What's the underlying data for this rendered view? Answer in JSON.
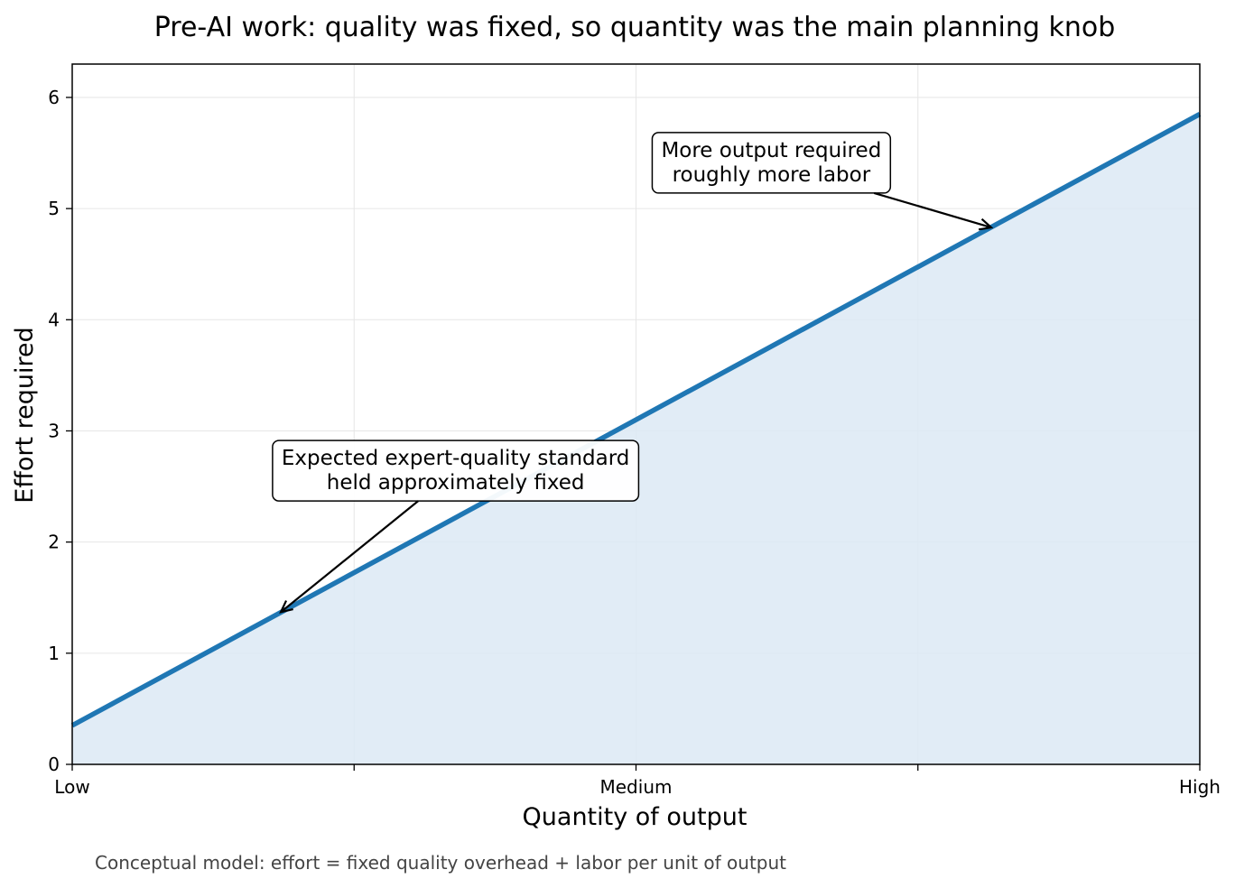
{
  "chart_data": {
    "type": "area",
    "title": "Pre-AI work: quality was fixed, so quantity was the main planning knob",
    "xlabel": "Quantity of output",
    "ylabel": "Effort required",
    "x_ticks": [
      {
        "value": 0,
        "label": "Low"
      },
      {
        "value": 0.25,
        "label": ""
      },
      {
        "value": 0.5,
        "label": "Medium"
      },
      {
        "value": 0.75,
        "label": ""
      },
      {
        "value": 1,
        "label": "High"
      }
    ],
    "y_ticks": [
      0,
      1,
      2,
      3,
      4,
      5,
      6
    ],
    "xlim": [
      0,
      1
    ],
    "ylim": [
      0,
      6.3
    ],
    "grid": true,
    "series": [
      {
        "x": [
          0,
          1
        ],
        "y": [
          0.35,
          5.85
        ],
        "color": "#1f77b4",
        "fill": "#dce9f5"
      }
    ],
    "annotations": [
      {
        "lines": [
          "Expected expert-quality standard",
          "held approximately fixed"
        ],
        "point": [
          0.185,
          1.37
        ],
        "text_at": [
          0.34,
          2.65
        ]
      },
      {
        "lines": [
          "More output required",
          "roughly more labor"
        ],
        "point": [
          0.815,
          4.83
        ],
        "text_at": [
          0.62,
          5.42
        ]
      }
    ]
  },
  "caption": "Conceptual model: effort = fixed quality overhead + labor per unit of output"
}
